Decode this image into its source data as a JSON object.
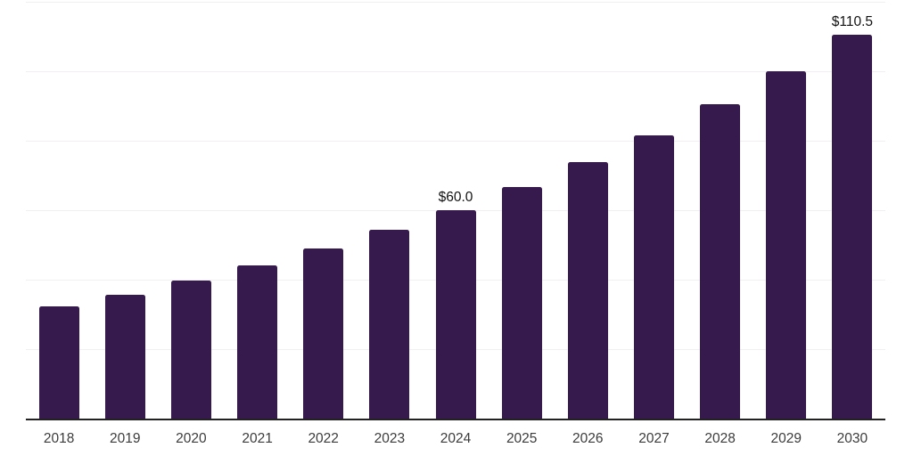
{
  "chart_data": {
    "type": "bar",
    "title": "",
    "xlabel": "",
    "ylabel": "",
    "categories": [
      "2018",
      "2019",
      "2020",
      "2021",
      "2022",
      "2023",
      "2024",
      "2025",
      "2026",
      "2027",
      "2028",
      "2029",
      "2030"
    ],
    "values": [
      32.3,
      35.6,
      39.7,
      44.0,
      48.9,
      54.4,
      60.0,
      66.7,
      73.8,
      81.6,
      90.4,
      100.0,
      110.5
    ],
    "bar_labels": [
      "",
      "",
      "",
      "",
      "",
      "",
      "$60.0",
      "",
      "",
      "",
      "",
      "",
      "$110.5"
    ],
    "ylim": [
      0,
      120
    ],
    "gridline_step": 20,
    "grid": true,
    "legend": false,
    "y_tick_labels_visible": false,
    "colors": {
      "bar": "#371a4d",
      "axis_line": "#222222",
      "gridline": "#f1eff2",
      "tick_label": "#3c3c3c",
      "data_label": "#111111",
      "background": "#ffffff"
    }
  }
}
